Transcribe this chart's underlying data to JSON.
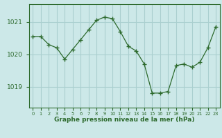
{
  "hours": [
    0,
    1,
    2,
    3,
    4,
    5,
    6,
    7,
    8,
    9,
    10,
    11,
    12,
    13,
    14,
    15,
    16,
    17,
    18,
    19,
    20,
    21,
    22,
    23
  ],
  "pressure": [
    1020.55,
    1020.55,
    1020.3,
    1020.2,
    1019.85,
    1020.15,
    1020.45,
    1020.75,
    1021.05,
    1021.15,
    1021.1,
    1020.7,
    1020.25,
    1020.1,
    1019.7,
    1018.8,
    1018.8,
    1018.85,
    1019.65,
    1019.7,
    1019.6,
    1019.75,
    1020.2,
    1020.85
  ],
  "line_color": "#2d6a2d",
  "marker_color": "#2d6a2d",
  "bg_color": "#cce8e8",
  "grid_color": "#aacfcf",
  "axis_color": "#2d6a2d",
  "label_color": "#2d6a2d",
  "xlabel": "Graphe pression niveau de la mer (hPa)",
  "yticks": [
    1019,
    1020,
    1021
  ],
  "xlim": [
    -0.5,
    23.5
  ],
  "ylim": [
    1018.35,
    1021.55
  ]
}
